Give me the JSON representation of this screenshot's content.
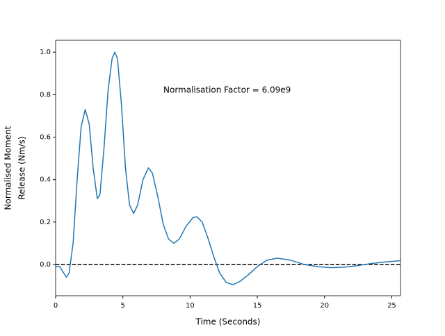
{
  "chart_data": {
    "type": "line",
    "xlabel": "Time (Seconds)",
    "ylabel": [
      "Normalised Moment",
      "Release (Nm/s)"
    ],
    "annotation": "Normalisation Factor = 6.09e9",
    "x": [
      0,
      0.3,
      0.5,
      0.8,
      1.0,
      1.3,
      1.6,
      1.9,
      2.2,
      2.5,
      2.8,
      3.1,
      3.3,
      3.6,
      3.9,
      4.2,
      4.4,
      4.6,
      4.9,
      5.2,
      5.5,
      5.8,
      6.1,
      6.5,
      6.9,
      7.2,
      7.6,
      8.0,
      8.4,
      8.8,
      9.2,
      9.7,
      10.2,
      10.5,
      10.9,
      11.3,
      11.8,
      12.2,
      12.7,
      13.2,
      13.7,
      14.3,
      15.0,
      15.7,
      16.5,
      17.5,
      18.5,
      19.5,
      20.5,
      21.5,
      22.5,
      23.5,
      24.5,
      25.65
    ],
    "series": [
      {
        "name": "moment release",
        "color": "#1f77b4",
        "values": [
          -0.01,
          -0.01,
          -0.03,
          -0.06,
          -0.04,
          0.1,
          0.4,
          0.65,
          0.73,
          0.66,
          0.45,
          0.31,
          0.33,
          0.55,
          0.82,
          0.97,
          1.0,
          0.97,
          0.75,
          0.45,
          0.28,
          0.24,
          0.28,
          0.4,
          0.455,
          0.43,
          0.32,
          0.19,
          0.12,
          0.1,
          0.12,
          0.18,
          0.22,
          0.225,
          0.2,
          0.13,
          0.03,
          -0.04,
          -0.085,
          -0.095,
          -0.08,
          -0.05,
          -0.01,
          0.02,
          0.03,
          0.02,
          0.0,
          -0.01,
          -0.015,
          -0.012,
          -0.005,
          0.005,
          0.012,
          0.018
        ]
      }
    ],
    "hline": 0,
    "xlim": [
      0,
      25.65
    ],
    "ylim": [
      -0.147,
      1.056
    ],
    "xticks": [
      0,
      5,
      10,
      15,
      20,
      25
    ],
    "yticks": [
      {
        "value": 0,
        "label": "0.0"
      },
      0.2,
      0.4,
      0.6,
      0.8,
      {
        "value": 1,
        "label": "1.0"
      }
    ]
  }
}
